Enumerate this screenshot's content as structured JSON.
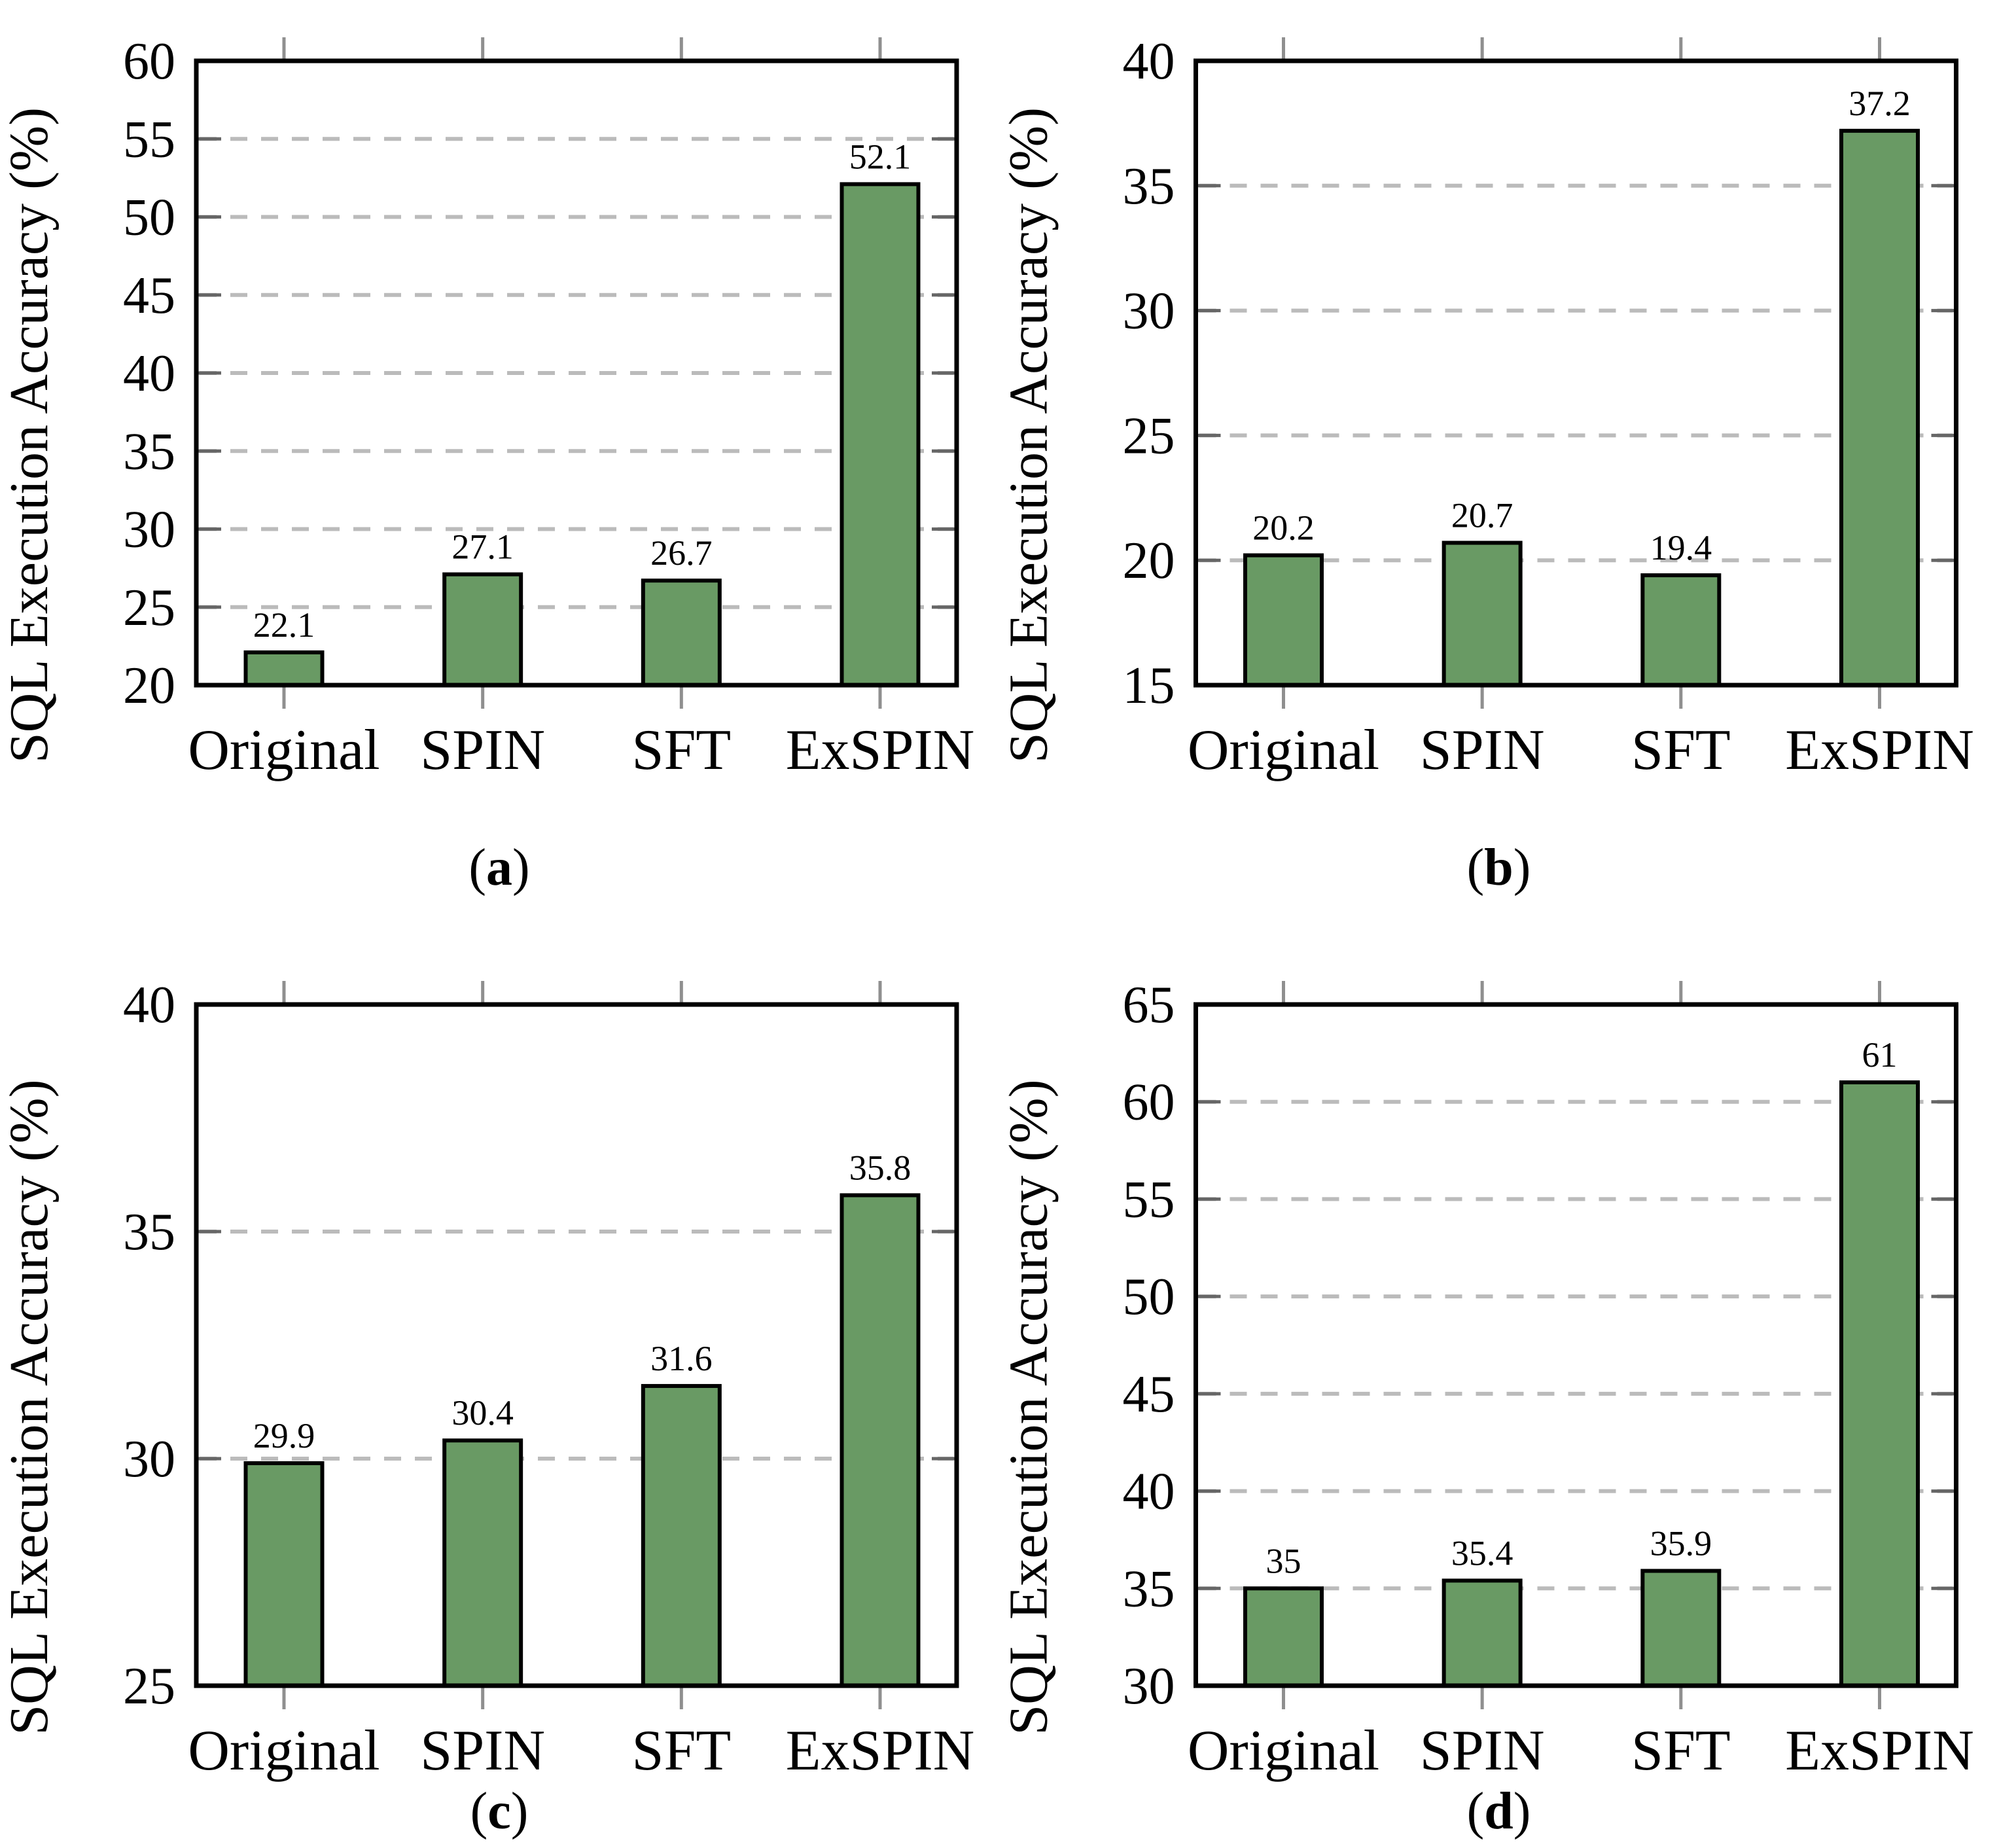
{
  "figure": {
    "type": "2x2-bar-chart-grid",
    "colors": {
      "bar_fill": "#699a64",
      "bar_border": "#000000",
      "frame": "#000000",
      "gridline": "#bbbbbb",
      "x_tick": "#8f8f8f",
      "y_tick": "#666666",
      "text": "#000000"
    }
  },
  "chart_data": [
    {
      "id": "a",
      "type": "bar",
      "caption_letter": "a",
      "title": "",
      "xlabel": "",
      "ylabel": "SQL Execution Accuracy (%)",
      "categories": [
        "Original",
        "SPIN",
        "SFT",
        "ExSPIN"
      ],
      "values": [
        22.1,
        27.1,
        26.7,
        52.1
      ],
      "value_labels": [
        "22.1",
        "27.1",
        "26.7",
        "52.1"
      ],
      "ylim": [
        20,
        60
      ],
      "ytick_step": 5,
      "ytick_labels": [
        "20",
        "25",
        "30",
        "35",
        "40",
        "45",
        "50",
        "55",
        "60"
      ],
      "grid": "horizontal-dashed",
      "legend": "none"
    },
    {
      "id": "b",
      "type": "bar",
      "caption_letter": "b",
      "title": "",
      "xlabel": "",
      "ylabel": "SQL Execution Accuracy (%)",
      "categories": [
        "Original",
        "SPIN",
        "SFT",
        "ExSPIN"
      ],
      "values": [
        20.2,
        20.7,
        19.4,
        37.2
      ],
      "value_labels": [
        "20.2",
        "20.7",
        "19.4",
        "37.2"
      ],
      "ylim": [
        15,
        40
      ],
      "ytick_step": 5,
      "ytick_labels": [
        "15",
        "20",
        "25",
        "30",
        "35",
        "40"
      ],
      "grid": "horizontal-dashed",
      "legend": "none"
    },
    {
      "id": "c",
      "type": "bar",
      "caption_letter": "c",
      "title": "",
      "xlabel": "",
      "ylabel": "SQL Execution Accuracy (%)",
      "categories": [
        "Original",
        "SPIN",
        "SFT",
        "ExSPIN"
      ],
      "values": [
        29.9,
        30.4,
        31.6,
        35.8
      ],
      "value_labels": [
        "29.9",
        "30.4",
        "31.6",
        "35.8"
      ],
      "ylim": [
        25,
        40
      ],
      "ytick_step": 5,
      "ytick_labels": [
        "25",
        "30",
        "35",
        "40"
      ],
      "grid": "horizontal-dashed",
      "legend": "none"
    },
    {
      "id": "d",
      "type": "bar",
      "caption_letter": "d",
      "title": "",
      "xlabel": "",
      "ylabel": "SQL Execution Accuracy (%)",
      "categories": [
        "Original",
        "SPIN",
        "SFT",
        "ExSPIN"
      ],
      "values": [
        35,
        35.4,
        35.9,
        61
      ],
      "value_labels": [
        "35",
        "35.4",
        "35.9",
        "61"
      ],
      "ylim": [
        30,
        65
      ],
      "ytick_step": 5,
      "ytick_labels": [
        "30",
        "35",
        "40",
        "45",
        "50",
        "55",
        "60",
        "65"
      ],
      "grid": "horizontal-dashed",
      "legend": "none"
    }
  ]
}
